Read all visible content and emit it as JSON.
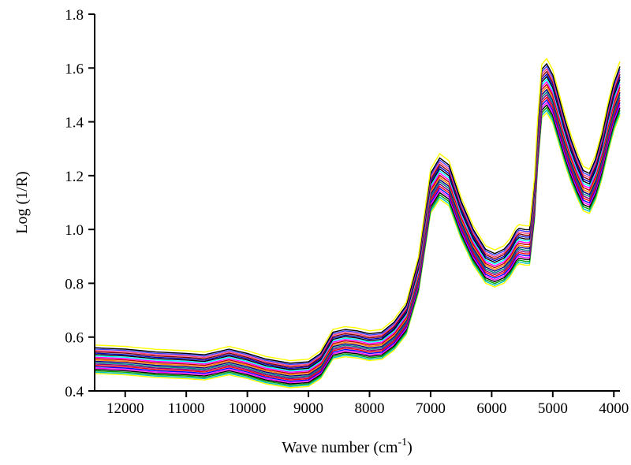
{
  "chart_data": {
    "type": "line",
    "title": "",
    "xlabel": "Wave number (cm",
    "xlabel_sup": "-1",
    "xlabel_suffix": ")",
    "ylabel": "Log (1/R)",
    "xlim": [
      12500,
      3900
    ],
    "ylim": [
      0.4,
      1.8
    ],
    "x_reversed": true,
    "grid": false,
    "legend": "none",
    "xticks": [
      12000,
      11000,
      10000,
      9000,
      8000,
      7000,
      6000,
      5000,
      4000
    ],
    "yticks": [
      "0.4",
      "0.6",
      "0.8",
      "1.0",
      "1.2",
      "1.4",
      "1.6",
      "1.8"
    ],
    "x": [
      12500,
      12000,
      11500,
      11000,
      10700,
      10500,
      10300,
      10000,
      9700,
      9300,
      9000,
      8800,
      8600,
      8400,
      8200,
      8000,
      7800,
      7600,
      7400,
      7200,
      7000,
      6850,
      6700,
      6500,
      6300,
      6100,
      5950,
      5800,
      5700,
      5600,
      5550,
      5450,
      5380,
      5300,
      5250,
      5180,
      5100,
      5000,
      4900,
      4800,
      4700,
      4600,
      4500,
      4400,
      4300,
      4200,
      4100,
      4000,
      3900
    ],
    "base_curve": [
      0.51,
      0.505,
      0.495,
      0.49,
      0.485,
      0.495,
      0.505,
      0.49,
      0.47,
      0.455,
      0.46,
      0.49,
      0.565,
      0.575,
      0.57,
      0.56,
      0.565,
      0.6,
      0.66,
      0.82,
      1.13,
      1.185,
      1.16,
      1.03,
      0.93,
      0.86,
      0.845,
      0.86,
      0.885,
      0.925,
      0.935,
      0.93,
      0.93,
      1.1,
      1.3,
      1.5,
      1.52,
      1.48,
      1.4,
      1.32,
      1.25,
      1.19,
      1.14,
      1.13,
      1.18,
      1.26,
      1.36,
      1.45,
      1.51
    ],
    "series": [
      {
        "color": "#FFFF00",
        "offset": -0.045
      },
      {
        "color": "#00C0C0",
        "offset": -0.04
      },
      {
        "color": "#00A000",
        "offset": -0.035
      },
      {
        "color": "#000000",
        "offset": -0.03
      },
      {
        "color": "#FF00FF",
        "offset": -0.025
      },
      {
        "color": "#0000FF",
        "offset": -0.02
      },
      {
        "color": "#FF0000",
        "offset": -0.015
      },
      {
        "color": "#800080",
        "offset": -0.01
      },
      {
        "color": "#008080",
        "offset": -0.005
      },
      {
        "color": "#000080",
        "offset": 0.0
      },
      {
        "color": "#FF8000",
        "offset": 0.005
      },
      {
        "color": "#C00000",
        "offset": 0.01
      },
      {
        "color": "#FF00FF",
        "offset": 0.015
      },
      {
        "color": "#00FFFF",
        "offset": 0.02
      },
      {
        "color": "#000000",
        "offset": 0.025
      },
      {
        "color": "#0000C0",
        "offset": 0.03
      },
      {
        "color": "#800000",
        "offset": 0.035
      },
      {
        "color": "#FF4080",
        "offset": 0.04
      },
      {
        "color": "#4040FF",
        "offset": 0.045
      },
      {
        "color": "#000000",
        "offset": 0.05
      },
      {
        "color": "#FFFF00",
        "offset": 0.06
      }
    ]
  }
}
